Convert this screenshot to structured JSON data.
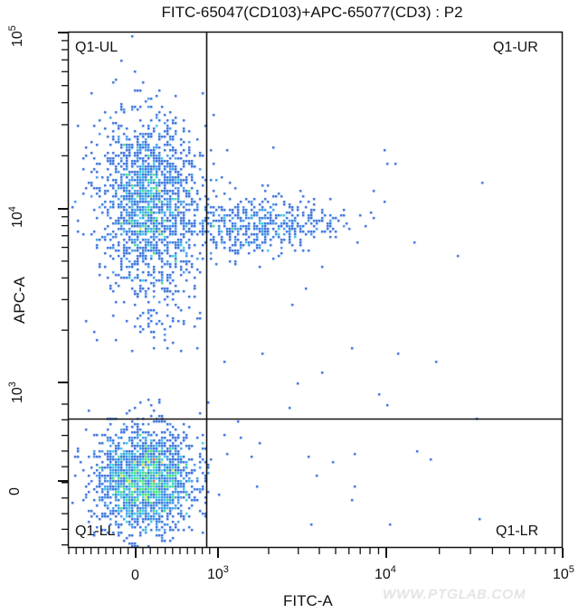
{
  "chart_data": {
    "type": "scatter",
    "subtype": "flow-cytometry-density-dot-plot",
    "title": "FITC-65047(CD103)+APC-65077(CD3) : P2",
    "xlabel": "FITC-A",
    "ylabel": "APC-A",
    "x_scale": "biexponential",
    "y_scale": "biexponential",
    "x_ticks": [
      {
        "label": "0",
        "base": "0",
        "exp": ""
      },
      {
        "label": "10^3",
        "base": "10",
        "exp": "3"
      },
      {
        "label": "10^4",
        "base": "10",
        "exp": "4"
      },
      {
        "label": "10^5",
        "base": "10",
        "exp": "5"
      }
    ],
    "y_ticks": [
      {
        "label": "0",
        "base": "0",
        "exp": ""
      },
      {
        "label": "10^3",
        "base": "10",
        "exp": "3"
      },
      {
        "label": "10^4",
        "base": "10",
        "exp": "4"
      },
      {
        "label": "10^5",
        "base": "10",
        "exp": "5"
      }
    ],
    "xlim": [
      "-3e2",
      "1e5"
    ],
    "ylim": [
      "-3e2",
      "1e5"
    ],
    "quadrant_gate": {
      "x_threshold_approx": 750,
      "y_threshold_approx": 650
    },
    "quadrants": [
      {
        "name": "Q1-UL",
        "position": "upper-left",
        "description": "CD103- CD3+ population, centered near FITC 0, APC ~1.2e4"
      },
      {
        "name": "Q1-UR",
        "position": "upper-right",
        "description": "CD103+ CD3+ population, FITC ~1e3-4e3, APC ~8e3"
      },
      {
        "name": "Q1-LL",
        "position": "lower-left",
        "description": "double-negative population, centered near 0,0 (densest)"
      },
      {
        "name": "Q1-LR",
        "position": "lower-right",
        "description": "sparse events"
      }
    ],
    "populations": [
      {
        "name": "UL cluster",
        "cx": 0.16,
        "cy": 0.31,
        "sx": 0.05,
        "sy": 0.075,
        "n": 1400
      },
      {
        "name": "UL tail",
        "cx": 0.17,
        "cy": 0.47,
        "sx": 0.045,
        "sy": 0.07,
        "n": 260
      },
      {
        "name": "UR cluster",
        "cx": 0.38,
        "cy": 0.375,
        "sx": 0.085,
        "sy": 0.03,
        "n": 520
      },
      {
        "name": "LL cluster",
        "cx": 0.155,
        "cy": 0.868,
        "sx": 0.05,
        "sy": 0.05,
        "n": 1900
      }
    ],
    "colormap": [
      "#1f5fd6",
      "#2a8be8",
      "#22c3e0",
      "#32e06a",
      "#d9e830",
      "#e85a1f"
    ],
    "grid": false,
    "legend": null
  },
  "watermark": "WWW.PTGLAB.COM"
}
